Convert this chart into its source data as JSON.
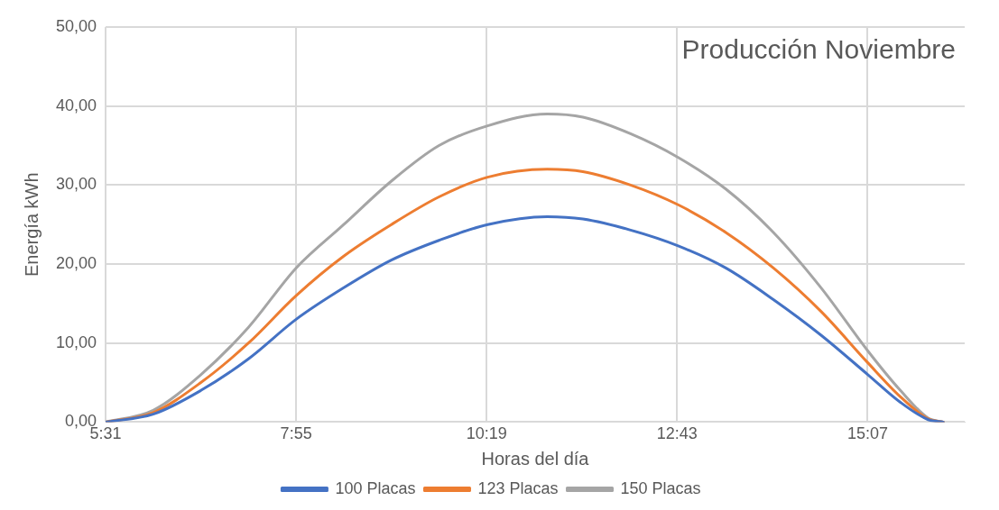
{
  "chart_data": {
    "type": "line",
    "title": "Producción Noviembre",
    "xlabel": "Horas del día",
    "ylabel": "Energía kWh",
    "x": [
      5.517,
      6.117,
      6.717,
      7.317,
      7.917,
      8.517,
      9.117,
      9.717,
      10.33,
      11.08,
      11.53,
      12.13,
      12.73,
      13.33,
      13.93,
      14.53,
      15.12,
      15.53,
      15.88,
      16.07
    ],
    "series": [
      {
        "name": "100 Placas",
        "color": "#4472c4",
        "values": [
          0,
          1,
          4,
          8,
          13,
          17,
          20.5,
          23,
          25,
          26,
          25.7,
          24.3,
          22.3,
          19.5,
          15.5,
          11,
          6,
          2.5,
          0.3,
          0
        ]
      },
      {
        "name": "123 Placas",
        "color": "#ed7d31",
        "values": [
          0,
          1.2,
          5,
          10,
          16,
          21,
          25,
          28.5,
          31,
          32,
          31.7,
          30,
          27.5,
          24,
          19.5,
          14,
          7.5,
          3.2,
          0.4,
          0
        ]
      },
      {
        "name": "150 Placas",
        "color": "#a5a5a5",
        "values": [
          0,
          1.5,
          6,
          12,
          19.5,
          25,
          30.5,
          35,
          37.5,
          39,
          38.6,
          36.5,
          33.5,
          29.5,
          24,
          17,
          9,
          4,
          0.5,
          0
        ]
      }
    ],
    "xlim": [
      5.517,
      16.34
    ],
    "xticks": [
      {
        "value": 5.517,
        "label": "5:31"
      },
      {
        "value": 7.917,
        "label": "7:55"
      },
      {
        "value": 10.317,
        "label": "10:19"
      },
      {
        "value": 12.717,
        "label": "12:43"
      },
      {
        "value": 15.117,
        "label": "15:07"
      }
    ],
    "ylim": [
      0,
      50
    ],
    "yticks": [
      {
        "value": 0,
        "label": "0,00"
      },
      {
        "value": 10,
        "label": "10,00"
      },
      {
        "value": 20,
        "label": "20,00"
      },
      {
        "value": 30,
        "label": "30,00"
      },
      {
        "value": 40,
        "label": "40,00"
      },
      {
        "value": 50,
        "label": "50,00"
      }
    ],
    "grid": true,
    "legend": "bottom",
    "marker": "none",
    "line_style": "solid"
  }
}
